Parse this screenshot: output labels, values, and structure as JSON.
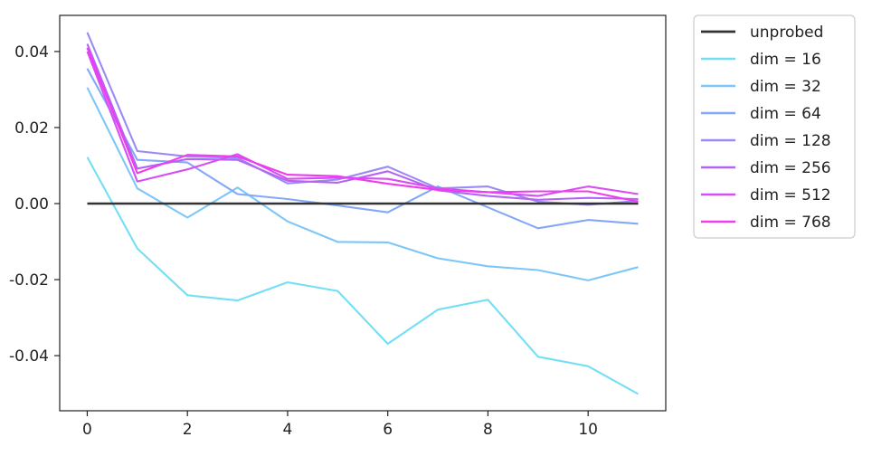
{
  "chart_data": {
    "type": "line",
    "title": "",
    "xlabel": "",
    "ylabel": "",
    "x": [
      0,
      1,
      2,
      3,
      4,
      5,
      6,
      7,
      8,
      9,
      10,
      11
    ],
    "xlim": [
      -0.55,
      11.55
    ],
    "ylim": [
      -0.0545,
      0.0495
    ],
    "xticks": [
      0,
      2,
      4,
      6,
      8,
      10
    ],
    "xtick_labels": [
      "0",
      "2",
      "4",
      "6",
      "8",
      "10"
    ],
    "yticks": [
      0.04,
      0.02,
      0.0,
      -0.02,
      -0.04
    ],
    "ytick_labels": [
      "0.04",
      "0.02",
      "0.00",
      "-0.02",
      "-0.04"
    ],
    "grid": false,
    "legend_position": "outside-right-top",
    "series": [
      {
        "name": "unprobed",
        "color": "#333333",
        "values": [
          0,
          0,
          0,
          0,
          0,
          0,
          0,
          0,
          0,
          0,
          0,
          0
        ]
      },
      {
        "name": "dim = 16",
        "color": "#72dff5",
        "values": [
          0.0122,
          -0.0118,
          -0.0241,
          -0.0255,
          -0.0207,
          -0.023,
          -0.0369,
          -0.0279,
          -0.0253,
          -0.0403,
          -0.0428,
          -0.0501
        ]
      },
      {
        "name": "dim = 32",
        "color": "#7dc6f8",
        "values": [
          0.0305,
          0.004,
          -0.0037,
          0.0042,
          -0.0047,
          -0.0101,
          -0.0102,
          -0.0144,
          -0.0165,
          -0.0175,
          -0.0202,
          -0.0167
        ]
      },
      {
        "name": "dim = 64",
        "color": "#82a8f6",
        "values": [
          0.0355,
          0.0115,
          0.0108,
          0.0025,
          0.0012,
          -0.0005,
          -0.0023,
          0.0045,
          -0.001,
          -0.0065,
          -0.0043,
          -0.0053
        ]
      },
      {
        "name": "dim = 128",
        "color": "#9a8af5",
        "values": [
          0.045,
          0.0138,
          0.0124,
          0.012,
          0.0053,
          0.0063,
          0.0097,
          0.004,
          0.0045,
          0.0005,
          -0.0003,
          0.0007
        ]
      },
      {
        "name": "dim = 256",
        "color": "#b464f4",
        "values": [
          0.042,
          0.0092,
          0.0117,
          0.0115,
          0.006,
          0.0055,
          0.0085,
          0.0035,
          0.002,
          0.001,
          0.0015,
          0.0012
        ]
      },
      {
        "name": "dim = 512",
        "color": "#d74ef3",
        "values": [
          0.04,
          0.0058,
          0.009,
          0.013,
          0.0065,
          0.0068,
          0.0065,
          0.004,
          0.003,
          0.002,
          0.0045,
          0.0025
        ]
      },
      {
        "name": "dim = 768",
        "color": "#ee3cf0",
        "values": [
          0.041,
          0.008,
          0.0128,
          0.0124,
          0.0076,
          0.0072,
          0.0052,
          0.0036,
          0.003,
          0.0032,
          0.0032,
          0.0005
        ]
      }
    ]
  }
}
